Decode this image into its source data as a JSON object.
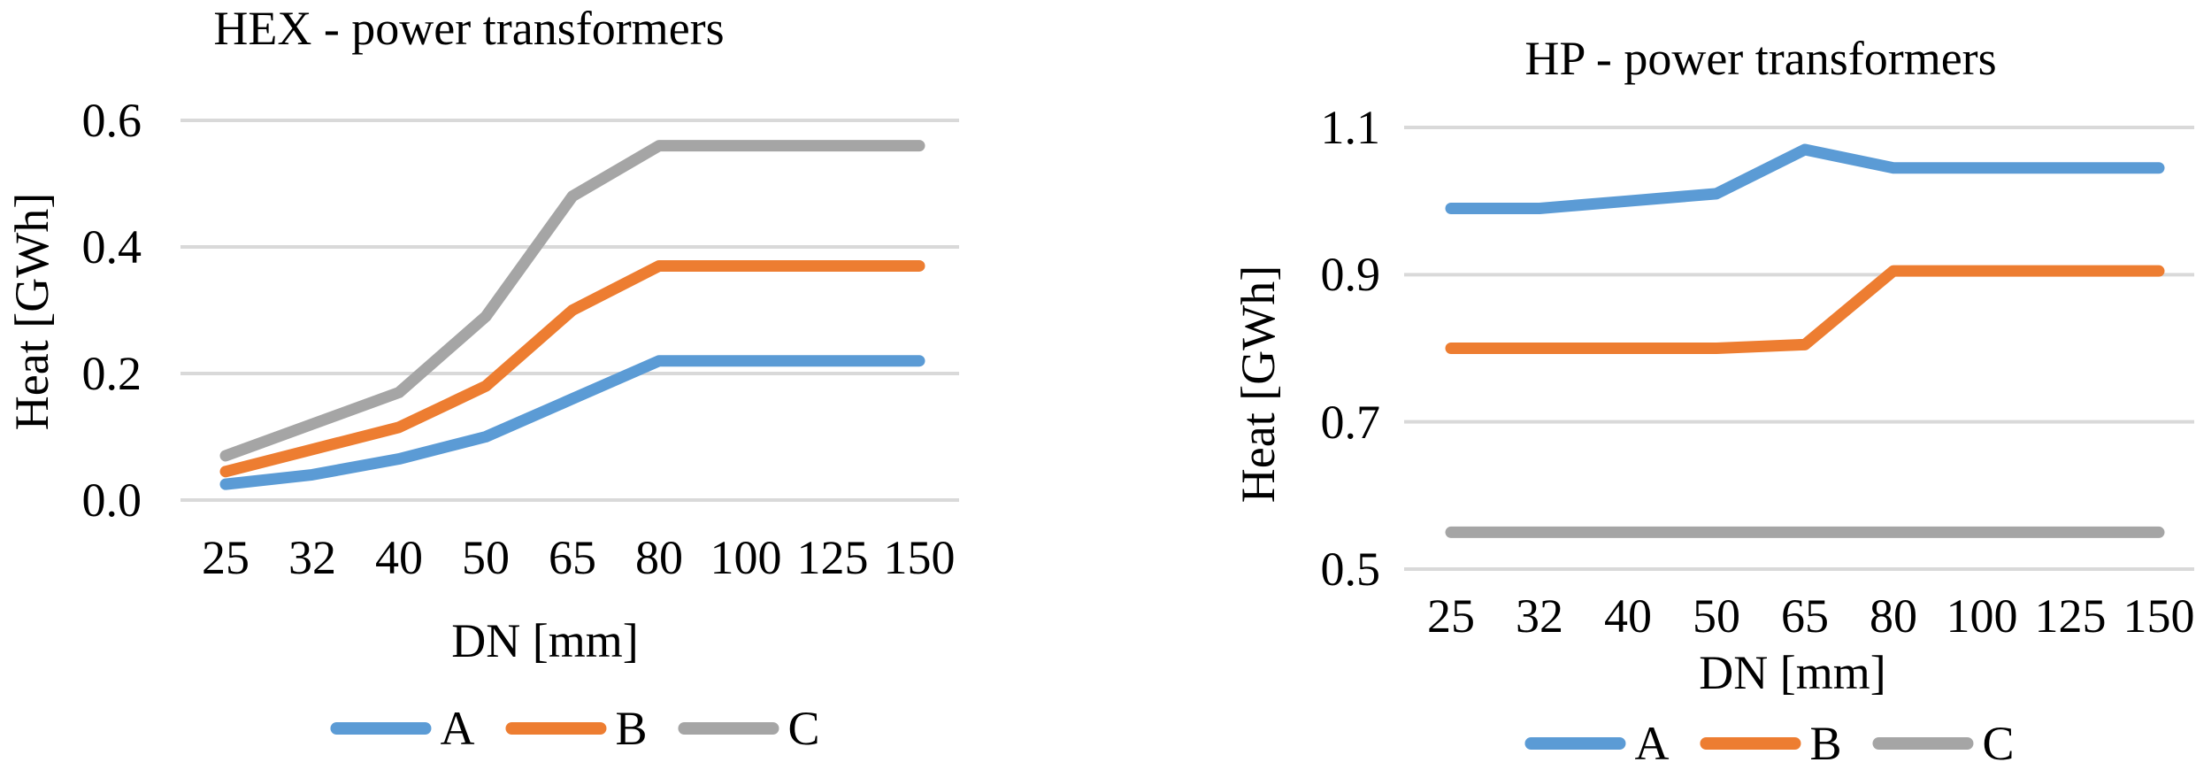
{
  "figure": {
    "background": "#ffffff",
    "text_color": "#000000",
    "gridline_color": "#d9d9d9"
  },
  "chart_data": [
    {
      "type": "line",
      "title": "HEX - power transformers",
      "xlabel": "DN [mm]",
      "ylabel": "Heat [GWh]",
      "categories": [
        "25",
        "32",
        "40",
        "50",
        "65",
        "80",
        "100",
        "125",
        "150"
      ],
      "yticks": [
        "0.6",
        "0.4",
        "0.2",
        "0.0"
      ],
      "ylim": [
        0.0,
        0.6
      ],
      "grid": "horizontal",
      "legend_position": "bottom",
      "series": [
        {
          "name": "A",
          "color": "#5B9BD5",
          "values": [
            0.025,
            0.04,
            0.065,
            0.1,
            0.16,
            0.22,
            0.22,
            0.22,
            0.22
          ]
        },
        {
          "name": "B",
          "color": "#ED7D31",
          "values": [
            0.045,
            0.08,
            0.115,
            0.18,
            0.3,
            0.37,
            0.37,
            0.37,
            0.37
          ]
        },
        {
          "name": "C",
          "color": "#A5A5A5",
          "values": [
            0.07,
            0.12,
            0.17,
            0.29,
            0.48,
            0.56,
            0.56,
            0.56,
            0.56
          ]
        }
      ]
    },
    {
      "type": "line",
      "title": "HP - power transformers",
      "xlabel": "DN [mm]",
      "ylabel": "Heat [GWh]",
      "categories": [
        "25",
        "32",
        "40",
        "50",
        "65",
        "80",
        "100",
        "125",
        "150"
      ],
      "yticks": [
        "1.1",
        "0.9",
        "0.7",
        "0.5"
      ],
      "ylim": [
        0.5,
        1.1
      ],
      "grid": "horizontal",
      "legend_position": "bottom",
      "series": [
        {
          "name": "A",
          "color": "#5B9BD5",
          "values": [
            0.99,
            0.99,
            1.0,
            1.01,
            1.07,
            1.045,
            1.045,
            1.045,
            1.045
          ]
        },
        {
          "name": "B",
          "color": "#ED7D31",
          "values": [
            0.8,
            0.8,
            0.8,
            0.8,
            0.805,
            0.905,
            0.905,
            0.905,
            0.905
          ]
        },
        {
          "name": "C",
          "color": "#A5A5A5",
          "values": [
            0.55,
            0.55,
            0.55,
            0.55,
            0.55,
            0.55,
            0.55,
            0.55,
            0.55
          ]
        }
      ]
    }
  ]
}
